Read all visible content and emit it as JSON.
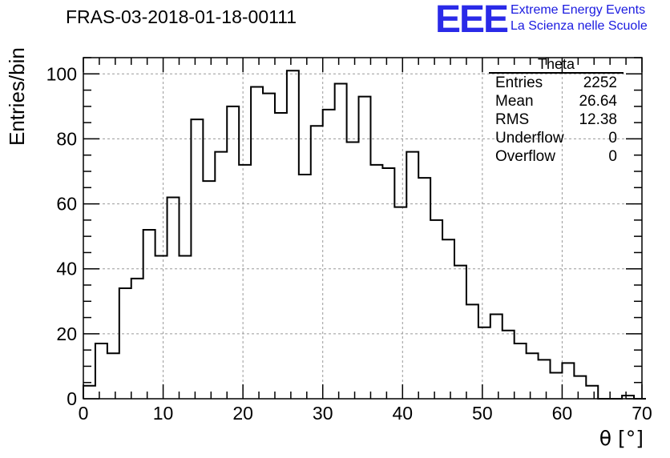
{
  "title": "FRAS-03-2018-01-18-00111",
  "logo": {
    "mark": "EEE",
    "line1": "Extreme Energy Events",
    "line2": "La Scienza nelle Scuole",
    "color": "#2a2ae8"
  },
  "stats": {
    "name": "Theta",
    "rows": [
      {
        "label": "Entries",
        "value": "2252"
      },
      {
        "label": "Mean",
        "value": "26.64"
      },
      {
        "label": "RMS",
        "value": "12.38"
      },
      {
        "label": "Underflow",
        "value": "0"
      },
      {
        "label": "Overflow",
        "value": "0"
      }
    ]
  },
  "chart_data": {
    "type": "bar",
    "style": "step-histogram",
    "title": "FRAS-03-2018-01-18-00111",
    "xlabel": "θ [°]",
    "ylabel": "Entries/bin",
    "xlim": [
      0,
      70
    ],
    "ylim": [
      0,
      105
    ],
    "bin_width": 1.5,
    "x_start": 0,
    "values": [
      4,
      17,
      14,
      34,
      37,
      52,
      44,
      62,
      44,
      86,
      67,
      76,
      90,
      72,
      96,
      94,
      88,
      101,
      69,
      84,
      89,
      97,
      79,
      93,
      72,
      71,
      59,
      76,
      68,
      55,
      49,
      41,
      29,
      22,
      26,
      21,
      17,
      14,
      12,
      8,
      11,
      7,
      4,
      0,
      0,
      1,
      0
    ],
    "x_ticks": [
      0,
      10,
      20,
      30,
      40,
      50,
      60,
      70
    ],
    "y_ticks": [
      0,
      20,
      40,
      60,
      80,
      100
    ],
    "grid": true,
    "line_color": "#000000"
  }
}
